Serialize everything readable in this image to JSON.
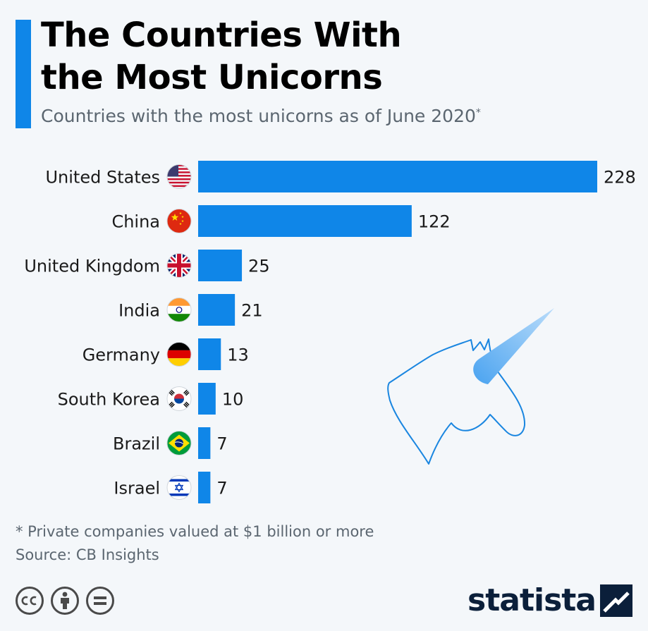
{
  "header": {
    "title_line1": "The Countries With",
    "title_line2": "the Most Unicorns",
    "subtitle": "Countries with the most unicorns as of June 2020",
    "subtitle_mark": "*"
  },
  "chart_data": {
    "type": "bar",
    "orientation": "horizontal",
    "title": "The Countries With the Most Unicorns",
    "subtitle": "Countries with the most unicorns as of June 2020*",
    "categories": [
      "United States",
      "China",
      "United Kingdom",
      "India",
      "Germany",
      "South Korea",
      "Brazil",
      "Israel"
    ],
    "values": [
      228,
      122,
      25,
      21,
      13,
      10,
      7,
      7
    ],
    "flag_icons": [
      "us-flag-icon",
      "china-flag-icon",
      "uk-flag-icon",
      "india-flag-icon",
      "germany-flag-icon",
      "south-korea-flag-icon",
      "brazil-flag-icon",
      "israel-flag-icon"
    ],
    "bar_color": "#0f86e8",
    "xlim": [
      0,
      228
    ],
    "grid": false,
    "legend": "none",
    "data_labels": true
  },
  "footer": {
    "footnote": "* Private companies valued at $1 billion or more",
    "source": "Source: CB Insights",
    "logo_text": "statista"
  },
  "colors": {
    "accent": "#0f86e8",
    "background": "#f4f7fa",
    "logo": "#0b1f3a"
  }
}
